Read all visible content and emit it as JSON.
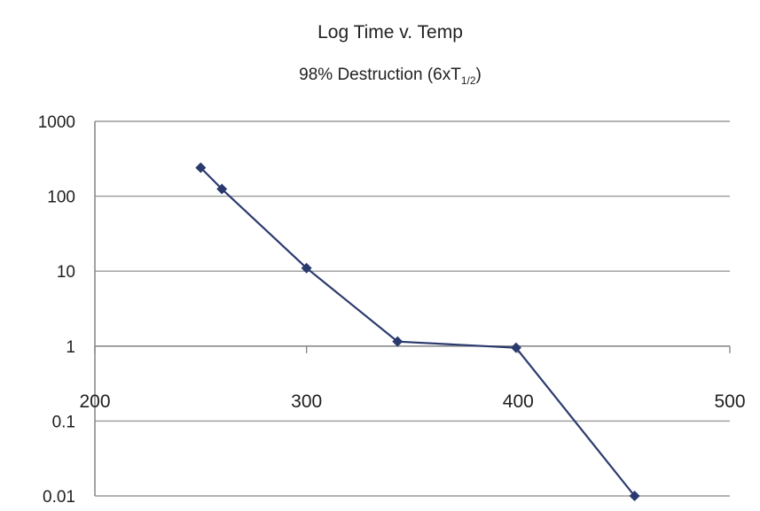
{
  "chart_data": {
    "type": "line",
    "title": "Log Time v. Temp",
    "subtitle": {
      "prefix": "98% Destruction (6xT",
      "subscript": "1/2",
      "suffix": ")"
    },
    "xlabel": "",
    "ylabel": "",
    "x_scale": "linear",
    "y_scale": "log",
    "xlim": [
      200,
      500
    ],
    "ylim": [
      0.01,
      1000
    ],
    "x_ticks": [
      200,
      300,
      400,
      500
    ],
    "y_ticks": [
      {
        "value": 1000,
        "label": "1000"
      },
      {
        "value": 100,
        "label": "100"
      },
      {
        "value": 10,
        "label": "10"
      },
      {
        "value": 1,
        "label": "1"
      },
      {
        "value": 0.1,
        "label": "0.1"
      },
      {
        "value": 0.01,
        "label": "0.01"
      }
    ],
    "x_axis_crosses_at_y": 1,
    "grid": "horizontal",
    "legend": "none",
    "series": [
      {
        "color": "#2b3a6e",
        "points": [
          {
            "x": 250,
            "y": 240
          },
          {
            "x": 260,
            "y": 125
          },
          {
            "x": 300,
            "y": 11
          },
          {
            "x": 343,
            "y": 1.15
          },
          {
            "x": 399,
            "y": 0.95
          },
          {
            "x": 455,
            "y": 0.01
          }
        ]
      }
    ]
  }
}
